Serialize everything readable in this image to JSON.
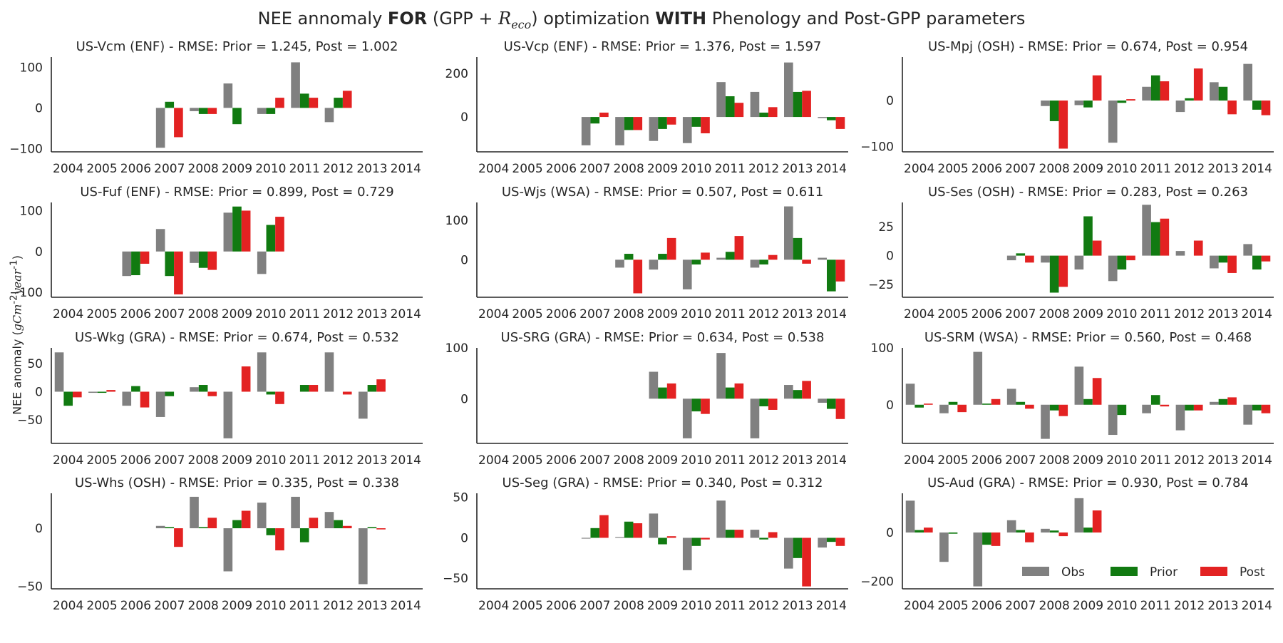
{
  "figure": {
    "title_part1": "NEE annomaly ",
    "title_bold1": "FOR",
    "title_part2": " (GPP + ",
    "title_math_R": "R",
    "title_math_sub": "eco",
    "title_part3": ") optimization ",
    "title_bold2": "WITH",
    "title_part4": " Phenology and Post-GPP parameters",
    "ylabel_prefix": "NEE anomaly (",
    "ylabel_math": "gCm",
    "ylabel_sup1": "-2",
    "ylabel_math2": "year",
    "ylabel_sup2": "-1",
    "ylabel_suffix": ")"
  },
  "legend": {
    "location": "lower-right of last panel",
    "items": [
      {
        "label": "Obs",
        "color": "#808080"
      },
      {
        "label": "Prior",
        "color": "#117a11"
      },
      {
        "label": "Post",
        "color": "#e32222"
      }
    ]
  },
  "colors": {
    "obs": "#808080",
    "prior": "#117a11",
    "post": "#e32222"
  },
  "chart_data": [
    {
      "type": "bar",
      "title": "US-Vcm (ENF) - RMSE: Prior = 1.245, Post = 1.002",
      "categories": [
        "2004",
        "2005",
        "2006",
        "2007",
        "2008",
        "2009",
        "2010",
        "2011",
        "2012",
        "2013",
        "2014"
      ],
      "yticks": [
        -100,
        0,
        100
      ],
      "ylim": [
        -108,
        125
      ],
      "series": [
        {
          "name": "Obs",
          "values": [
            null,
            null,
            null,
            -98,
            -8,
            60,
            -15,
            112,
            -35,
            null,
            null
          ]
        },
        {
          "name": "Prior",
          "values": [
            null,
            null,
            null,
            15,
            -15,
            -40,
            -15,
            35,
            25,
            null,
            null
          ]
        },
        {
          "name": "Post",
          "values": [
            null,
            null,
            null,
            -72,
            -15,
            null,
            25,
            25,
            42,
            null,
            null
          ]
        }
      ]
    },
    {
      "type": "bar",
      "title": "US-Vcp (ENF) - RMSE: Prior = 1.376, Post = 1.597",
      "categories": [
        "2004",
        "2005",
        "2006",
        "2007",
        "2008",
        "2009",
        "2010",
        "2011",
        "2012",
        "2013",
        "2014"
      ],
      "yticks": [
        0,
        200
      ],
      "ylim": [
        -160,
        275
      ],
      "series": [
        {
          "name": "Obs",
          "values": [
            null,
            null,
            null,
            -130,
            -130,
            -110,
            -120,
            160,
            115,
            250,
            -5
          ]
        },
        {
          "name": "Prior",
          "values": [
            null,
            null,
            null,
            -30,
            -60,
            -55,
            -45,
            95,
            20,
            115,
            -15
          ]
        },
        {
          "name": "Post",
          "values": [
            null,
            null,
            null,
            20,
            -60,
            -35,
            -75,
            65,
            45,
            120,
            -55
          ]
        }
      ]
    },
    {
      "type": "bar",
      "title": "US-Mpj (OSH) - RMSE: Prior = 0.674, Post = 0.954",
      "categories": [
        "2004",
        "2005",
        "2006",
        "2007",
        "2008",
        "2009",
        "2010",
        "2011",
        "2012",
        "2013",
        "2014"
      ],
      "yticks": [
        -100,
        0
      ],
      "ylim": [
        -112,
        95
      ],
      "series": [
        {
          "name": "Obs",
          "values": [
            null,
            null,
            null,
            null,
            -12,
            -10,
            -92,
            30,
            -25,
            40,
            80
          ]
        },
        {
          "name": "Prior",
          "values": [
            null,
            null,
            null,
            null,
            -45,
            -15,
            -5,
            55,
            5,
            30,
            -20
          ]
        },
        {
          "name": "Post",
          "values": [
            null,
            null,
            null,
            null,
            -105,
            55,
            3,
            42,
            70,
            -30,
            -32
          ]
        }
      ]
    },
    {
      "type": "bar",
      "title": "US-Fuf (ENF) - RMSE: Prior = 0.899, Post = 0.729",
      "categories": [
        "2004",
        "2005",
        "2006",
        "2007",
        "2008",
        "2009",
        "2010",
        "2011",
        "2012",
        "2013",
        "2014"
      ],
      "yticks": [
        -100,
        0,
        100
      ],
      "ylim": [
        -112,
        120
      ],
      "series": [
        {
          "name": "Obs",
          "values": [
            null,
            null,
            -60,
            55,
            -28,
            95,
            -55,
            null,
            null,
            null,
            null
          ]
        },
        {
          "name": "Prior",
          "values": [
            null,
            null,
            -58,
            -60,
            -40,
            110,
            65,
            null,
            null,
            null,
            null
          ]
        },
        {
          "name": "Post",
          "values": [
            null,
            null,
            -30,
            -105,
            -45,
            100,
            85,
            null,
            null,
            null,
            null
          ]
        }
      ]
    },
    {
      "type": "bar",
      "title": "US-Wjs (WSA) - RMSE: Prior = 0.507, Post = 0.611",
      "categories": [
        "2004",
        "2005",
        "2006",
        "2007",
        "2008",
        "2009",
        "2010",
        "2011",
        "2012",
        "2013",
        "2014"
      ],
      "yticks": [
        0,
        100
      ],
      "ylim": [
        -95,
        145
      ],
      "series": [
        {
          "name": "Obs",
          "values": [
            null,
            null,
            null,
            null,
            -20,
            -25,
            -75,
            5,
            -20,
            135,
            5
          ]
        },
        {
          "name": "Prior",
          "values": [
            null,
            null,
            null,
            null,
            15,
            15,
            -12,
            20,
            -12,
            55,
            -80
          ]
        },
        {
          "name": "Post",
          "values": [
            null,
            null,
            null,
            null,
            -85,
            55,
            18,
            60,
            12,
            -10,
            -55
          ]
        }
      ]
    },
    {
      "type": "bar",
      "title": "US-Ses (OSH) - RMSE: Prior = 0.283, Post = 0.263",
      "categories": [
        "2004",
        "2005",
        "2006",
        "2007",
        "2008",
        "2009",
        "2010",
        "2011",
        "2012",
        "2013",
        "2014"
      ],
      "yticks": [
        -25,
        0,
        25
      ],
      "ylim": [
        -36,
        46
      ],
      "series": [
        {
          "name": "Obs",
          "values": [
            null,
            null,
            null,
            -4,
            -6,
            -12,
            -22,
            44,
            4,
            -11,
            10
          ]
        },
        {
          "name": "Prior",
          "values": [
            null,
            null,
            null,
            2,
            -32,
            34,
            -12,
            29,
            null,
            -6,
            -12
          ]
        },
        {
          "name": "Post",
          "values": [
            null,
            null,
            null,
            -6,
            -27,
            13,
            -4,
            32,
            13,
            -15,
            -5
          ]
        }
      ]
    },
    {
      "type": "bar",
      "title": "US-Wkg (GRA) - RMSE: Prior = 0.674, Post = 0.532",
      "categories": [
        "2004",
        "2005",
        "2006",
        "2007",
        "2008",
        "2009",
        "2010",
        "2011",
        "2012",
        "2013",
        "2014"
      ],
      "yticks": [
        -50,
        0,
        50
      ],
      "ylim": [
        -92,
        78
      ],
      "series": [
        {
          "name": "Obs",
          "values": [
            70,
            -2,
            -25,
            -45,
            8,
            -83,
            70,
            null,
            70,
            -48,
            null
          ]
        },
        {
          "name": "Prior",
          "values": [
            -25,
            -2,
            10,
            -8,
            12,
            null,
            -5,
            12,
            null,
            12,
            null
          ]
        },
        {
          "name": "Post",
          "values": [
            -10,
            3,
            -28,
            null,
            -8,
            45,
            -22,
            12,
            -5,
            22,
            null
          ]
        }
      ]
    },
    {
      "type": "bar",
      "title": "US-SRG (GRA) - RMSE: Prior = 0.634, Post = 0.538",
      "categories": [
        "2004",
        "2005",
        "2006",
        "2007",
        "2008",
        "2009",
        "2010",
        "2011",
        "2012",
        "2013",
        "2014"
      ],
      "yticks": [
        0,
        100
      ],
      "ylim": [
        -88,
        100
      ],
      "series": [
        {
          "name": "Obs",
          "values": [
            null,
            null,
            null,
            null,
            null,
            53,
            -78,
            90,
            -78,
            27,
            -8
          ]
        },
        {
          "name": "Prior",
          "values": [
            null,
            null,
            null,
            null,
            null,
            22,
            -25,
            22,
            -15,
            17,
            -20
          ]
        },
        {
          "name": "Post",
          "values": [
            null,
            null,
            null,
            null,
            null,
            30,
            -30,
            30,
            -22,
            35,
            -40
          ]
        }
      ]
    },
    {
      "type": "bar",
      "title": "US-SRM (WSA) - RMSE: Prior = 0.560, Post = 0.468",
      "categories": [
        "2004",
        "2005",
        "2006",
        "2007",
        "2008",
        "2009",
        "2010",
        "2011",
        "2012",
        "2013",
        "2014"
      ],
      "yticks": [
        0,
        100
      ],
      "ylim": [
        -68,
        100
      ],
      "series": [
        {
          "name": "Obs",
          "values": [
            37,
            -15,
            93,
            28,
            -60,
            67,
            -53,
            -15,
            -45,
            5,
            -35
          ]
        },
        {
          "name": "Prior",
          "values": [
            -5,
            5,
            2,
            5,
            -10,
            10,
            -18,
            17,
            -10,
            10,
            -10
          ]
        },
        {
          "name": "Post",
          "values": [
            2,
            -13,
            10,
            -7,
            -20,
            47,
            null,
            -3,
            -10,
            13,
            -15
          ]
        }
      ]
    },
    {
      "type": "bar",
      "title": "US-Whs (OSH) - RMSE: Prior = 0.335, Post = 0.338",
      "categories": [
        "2004",
        "2005",
        "2006",
        "2007",
        "2008",
        "2009",
        "2010",
        "2011",
        "2012",
        "2013",
        "2014"
      ],
      "yticks": [
        -50,
        0
      ],
      "ylim": [
        -52,
        30
      ],
      "series": [
        {
          "name": "Obs",
          "values": [
            null,
            null,
            null,
            2,
            27,
            -37,
            22,
            27,
            14,
            -48,
            null
          ]
        },
        {
          "name": "Prior",
          "values": [
            null,
            null,
            null,
            1,
            1,
            7,
            -6,
            -12,
            7,
            1,
            null
          ]
        },
        {
          "name": "Post",
          "values": [
            null,
            null,
            null,
            -16,
            9,
            15,
            -19,
            9,
            2,
            -1,
            null
          ]
        }
      ]
    },
    {
      "type": "bar",
      "title": "US-Seg (GRA) - RMSE: Prior = 0.340, Post = 0.312",
      "categories": [
        "2004",
        "2005",
        "2006",
        "2007",
        "2008",
        "2009",
        "2010",
        "2011",
        "2012",
        "2013",
        "2014"
      ],
      "yticks": [
        -50,
        0,
        50
      ],
      "ylim": [
        -63,
        55
      ],
      "series": [
        {
          "name": "Obs",
          "values": [
            null,
            null,
            null,
            -1,
            1,
            30,
            -40,
            46,
            10,
            -38,
            -12
          ]
        },
        {
          "name": "Prior",
          "values": [
            null,
            null,
            null,
            12,
            20,
            -8,
            -10,
            10,
            -2,
            -25,
            -5
          ]
        },
        {
          "name": "Post",
          "values": [
            null,
            null,
            null,
            28,
            18,
            2,
            -2,
            10,
            7,
            -60,
            -10
          ]
        }
      ]
    },
    {
      "type": "bar",
      "title": "US-Aud (GRA) - RMSE: Prior = 0.930, Post = 0.784",
      "categories": [
        "2004",
        "2005",
        "2006",
        "2007",
        "2008",
        "2009",
        "2010",
        "2011",
        "2012",
        "2013",
        "2014"
      ],
      "yticks": [
        -200,
        0
      ],
      "ylim": [
        -230,
        160
      ],
      "series": [
        {
          "name": "Obs",
          "values": [
            130,
            -120,
            -220,
            50,
            15,
            140,
            null,
            null,
            null,
            null,
            null
          ]
        },
        {
          "name": "Prior",
          "values": [
            10,
            -5,
            -50,
            10,
            8,
            20,
            null,
            null,
            null,
            null,
            null
          ]
        },
        {
          "name": "Post",
          "values": [
            20,
            null,
            -55,
            -40,
            -15,
            90,
            null,
            null,
            null,
            null,
            null
          ]
        }
      ]
    }
  ]
}
